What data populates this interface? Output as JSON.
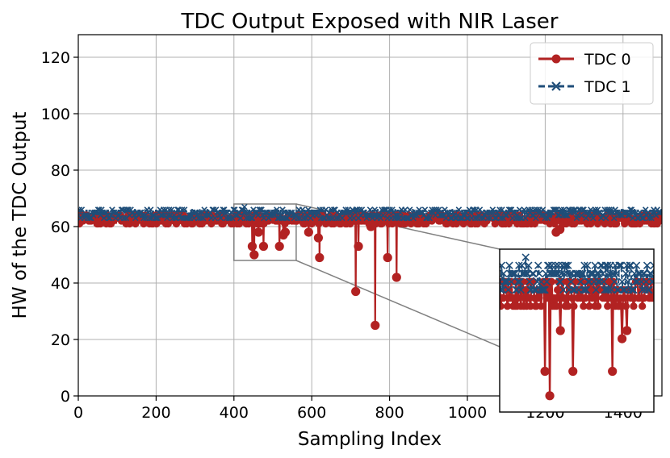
{
  "chart_data": {
    "type": "line",
    "title": "TDC Output Exposed with NIR Laser",
    "xlabel": "Sampling Index",
    "ylabel": "HW of the TDC Output",
    "xlim": [
      0,
      1500
    ],
    "ylim": [
      0,
      128
    ],
    "xticks": [
      0,
      200,
      400,
      600,
      800,
      1000,
      1200,
      1400
    ],
    "yticks": [
      0,
      20,
      40,
      60,
      80,
      100,
      120
    ],
    "grid": true,
    "legend_position": "top-right",
    "series": [
      {
        "name": "TDC 0",
        "color": "#b22222",
        "marker": "circle",
        "linestyle": "solid",
        "baseline_range": [
          61,
          64
        ],
        "dips": [
          {
            "x": 447,
            "y": 53
          },
          {
            "x": 452,
            "y": 50
          },
          {
            "x": 463,
            "y": 58
          },
          {
            "x": 476,
            "y": 53
          },
          {
            "x": 517,
            "y": 53
          },
          {
            "x": 527,
            "y": 57
          },
          {
            "x": 532,
            "y": 58
          },
          {
            "x": 592,
            "y": 58
          },
          {
            "x": 617,
            "y": 56
          },
          {
            "x": 620,
            "y": 49
          },
          {
            "x": 713,
            "y": 37
          },
          {
            "x": 720,
            "y": 53
          },
          {
            "x": 752,
            "y": 60
          },
          {
            "x": 763,
            "y": 25
          },
          {
            "x": 795,
            "y": 49
          },
          {
            "x": 818,
            "y": 42
          },
          {
            "x": 1228,
            "y": 58
          },
          {
            "x": 1238,
            "y": 59
          }
        ]
      },
      {
        "name": "TDC 1",
        "color": "#1f4e79",
        "marker": "x",
        "linestyle": "dashed",
        "baseline_range": [
          63,
          66
        ],
        "spikes": [
          {
            "x": 427,
            "y": 67
          }
        ]
      }
    ],
    "inset": {
      "x_range": [
        400,
        560
      ],
      "y_range": [
        48,
        68
      ]
    }
  }
}
